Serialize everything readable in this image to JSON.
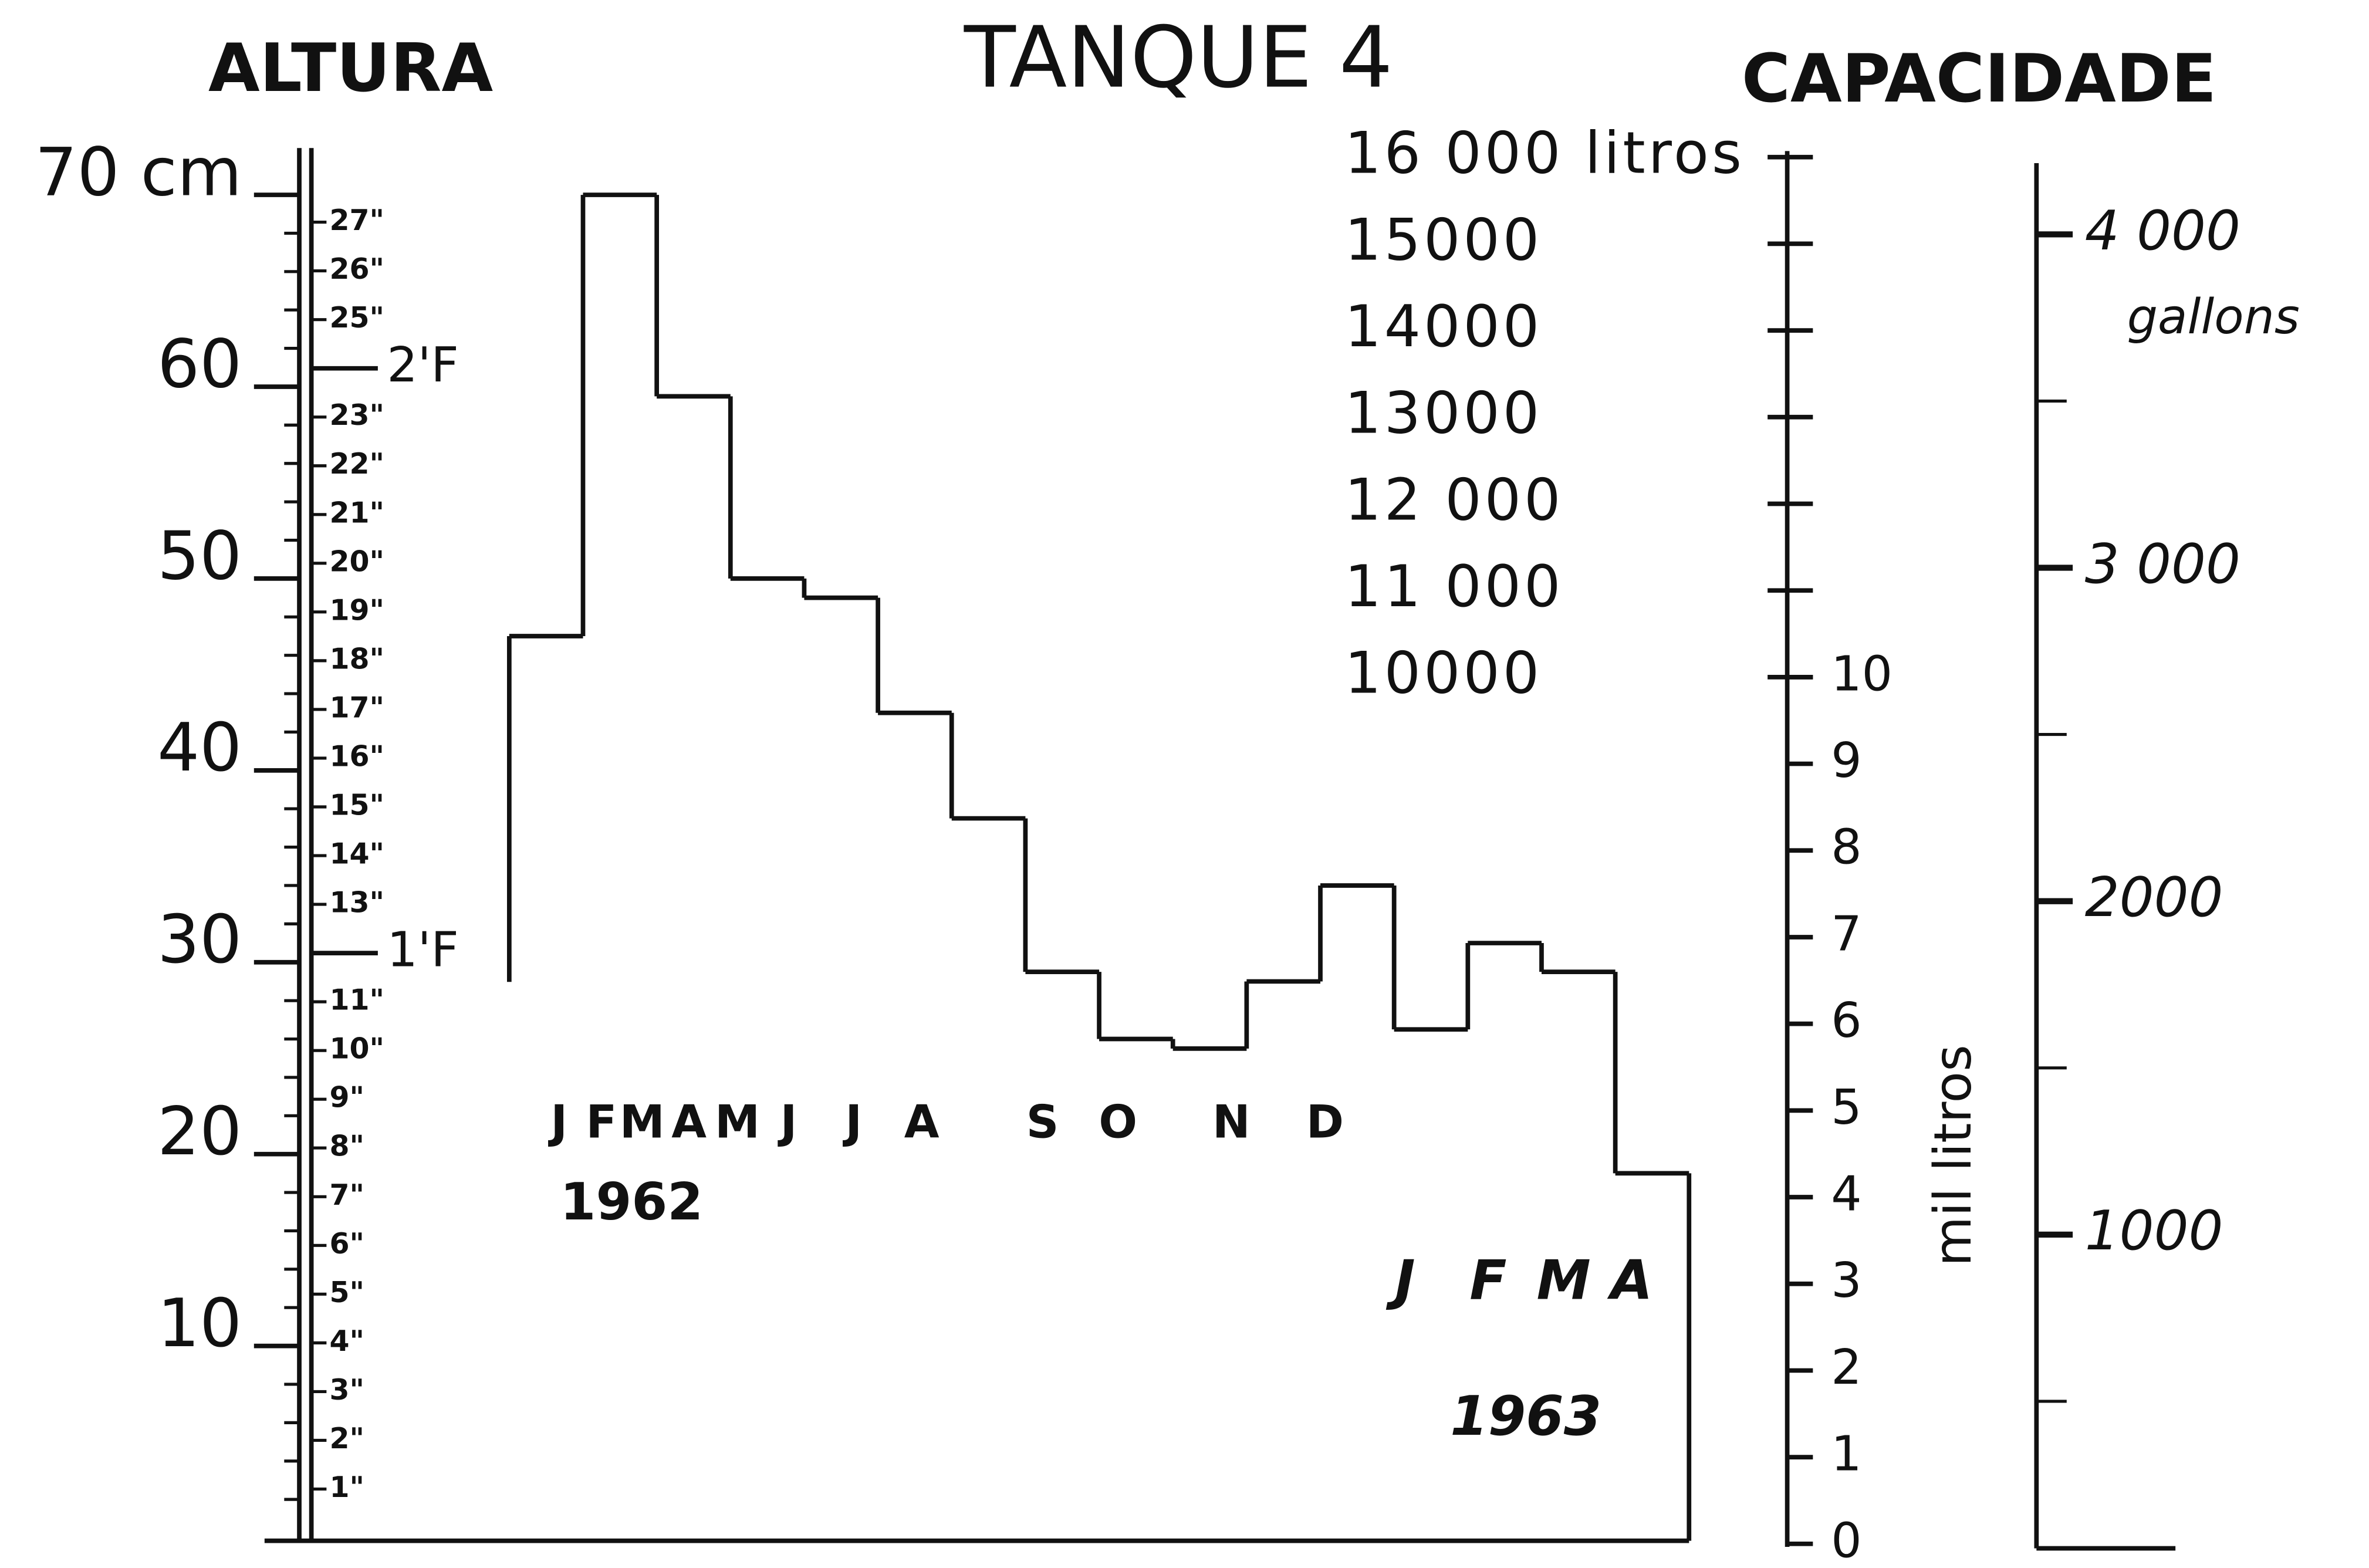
{
  "chart_data": {
    "type": "step",
    "title": "TANQUE 4",
    "ylabel": "ALTURA",
    "y2label": "CAPACIDADE",
    "categories": [
      "J",
      "F",
      "M",
      "A",
      "M",
      "J",
      "J",
      "A",
      "S",
      "O",
      "N",
      "D",
      "J",
      "F",
      "M",
      "A"
    ],
    "years": [
      "1962",
      "1963"
    ],
    "values": [
      47,
      70,
      59.5,
      50,
      49,
      43,
      37.5,
      29.5,
      26,
      25.5,
      29,
      34,
      26.5,
      31,
      29.5,
      19
    ],
    "color": "#111111",
    "ylim": [
      0,
      70
    ],
    "yticks": [
      10,
      20,
      30,
      40,
      50,
      {
        "value": 60,
        "label": "60"
      },
      {
        "value": 70,
        "label": "70 cm"
      }
    ],
    "yminor_ticks": [
      2,
      4,
      6,
      8,
      12,
      14,
      16,
      18,
      22,
      24,
      26,
      28,
      32,
      34,
      36,
      38,
      42,
      44,
      46,
      48,
      52,
      54,
      56,
      58,
      62,
      64,
      66,
      68
    ],
    "inch_lim": [
      0,
      27.56
    ],
    "inch_ticks": [
      {
        "value": 1,
        "label": "1\""
      },
      {
        "value": 2,
        "label": "2\""
      },
      {
        "value": 3,
        "label": "3\""
      },
      {
        "value": 4,
        "label": "4\""
      },
      {
        "value": 5,
        "label": "5\""
      },
      {
        "value": 6,
        "label": "6\""
      },
      {
        "value": 7,
        "label": "7\""
      },
      {
        "value": 8,
        "label": "8\""
      },
      {
        "value": 9,
        "label": "9\""
      },
      {
        "value": 10,
        "label": "10\""
      },
      {
        "value": 11,
        "label": "11\""
      },
      {
        "value": 12,
        "label": "1'F"
      },
      {
        "value": 13,
        "label": "13\""
      },
      {
        "value": 14,
        "label": "14\""
      },
      {
        "value": 15,
        "label": "15\""
      },
      {
        "value": 16,
        "label": "16\""
      },
      {
        "value": 17,
        "label": "17\""
      },
      {
        "value": 18,
        "label": "18\""
      },
      {
        "value": 19,
        "label": "19\""
      },
      {
        "value": 20,
        "label": "20\""
      },
      {
        "value": 21,
        "label": "21\""
      },
      {
        "value": 22,
        "label": "22\""
      },
      {
        "value": 23,
        "label": "23\""
      },
      {
        "value": 24,
        "label": "2'F"
      },
      {
        "value": 25,
        "label": "25\""
      },
      {
        "value": 26,
        "label": "26\""
      },
      {
        "value": 27,
        "label": "27\""
      }
    ],
    "litros_lim": [
      0,
      16000
    ],
    "litros_ticks": [
      {
        "value": 0,
        "label": "0"
      },
      {
        "value": 1000,
        "label": "1"
      },
      {
        "value": 2000,
        "label": "2"
      },
      {
        "value": 3000,
        "label": "3"
      },
      {
        "value": 4000,
        "label": "4"
      },
      {
        "value": 5000,
        "label": "5"
      },
      {
        "value": 6000,
        "label": "6"
      },
      {
        "value": 7000,
        "label": "7"
      },
      {
        "value": 8000,
        "label": "8"
      },
      {
        "value": 9000,
        "label": "9"
      },
      {
        "value": 10000,
        "label": "10"
      }
    ],
    "litros_major_ticks": [
      {
        "value": 10000,
        "label": "10000"
      },
      {
        "value": 11000,
        "label": "11 000"
      },
      {
        "value": 12000,
        "label": "12 000"
      },
      {
        "value": 13000,
        "label": "13000"
      },
      {
        "value": 14000,
        "label": "14000"
      },
      {
        "value": 15000,
        "label": "15000"
      },
      {
        "value": 16000,
        "label": "16 000 litros"
      }
    ],
    "litros_label": "mil litros",
    "gallon_lim": [
      0,
      4200
    ],
    "gallon_ticks": [
      {
        "value": 1000,
        "label": "1000"
      },
      {
        "value": 2000,
        "label": "2000"
      },
      {
        "value": 3000,
        "label": "3 000"
      },
      {
        "value": 4000,
        "label": "4 000"
      }
    ],
    "gallon_minor_ticks": [
      500,
      1500,
      2500,
      3500
    ],
    "gallon_label": "gallons"
  }
}
